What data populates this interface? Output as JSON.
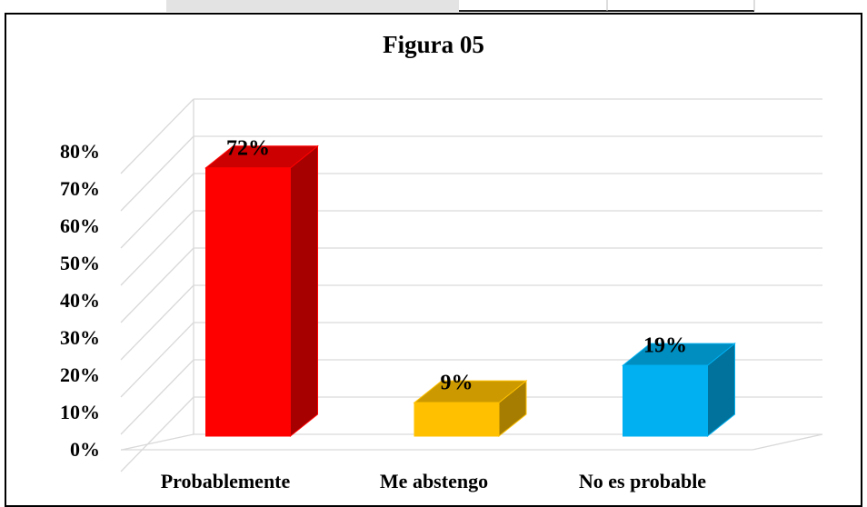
{
  "chart_data": {
    "type": "bar3d",
    "title": "Figura 05",
    "categories": [
      "Probablemente",
      "Me abstengo",
      "No es probable"
    ],
    "values": [
      72,
      9,
      19
    ],
    "value_labels": [
      "72%",
      "9%",
      "19%"
    ],
    "colors": [
      "#ff0000",
      "#ffc000",
      "#00b0f0"
    ],
    "ylim": [
      0,
      90
    ],
    "yticks": [
      {
        "value": 0,
        "label": "0%"
      },
      {
        "value": 10,
        "label": "10%"
      },
      {
        "value": 20,
        "label": "20%"
      },
      {
        "value": 30,
        "label": "30%"
      },
      {
        "value": 40,
        "label": "40%"
      },
      {
        "value": 50,
        "label": "50%"
      },
      {
        "value": 60,
        "label": "60%"
      },
      {
        "value": 70,
        "label": "70%"
      },
      {
        "value": 80,
        "label": "80%"
      }
    ],
    "grid": true
  }
}
